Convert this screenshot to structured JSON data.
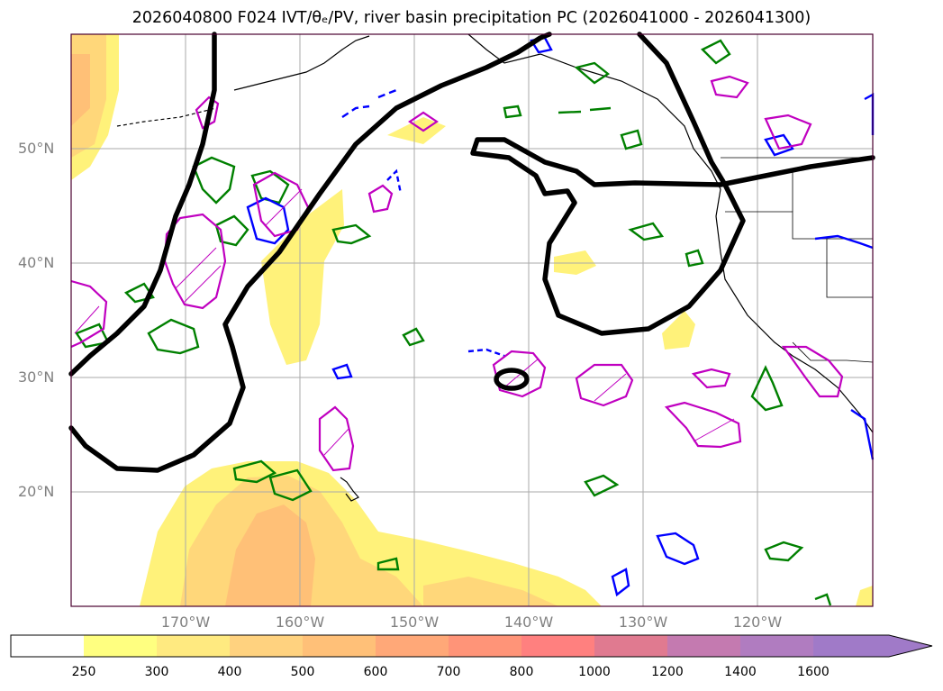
{
  "title": "2026040800 F024 IVT/θₑ/PV, river basin precipitation PC (2026041000 - 2026041300)",
  "axes": {
    "lat_labels": [
      "50°N",
      "40°N",
      "30°N",
      "20°N"
    ],
    "lon_labels": [
      "170°W",
      "160°W",
      "150°W",
      "140°W",
      "130°W",
      "120°W"
    ]
  },
  "colorbar": {
    "labels": [
      "250",
      "300",
      "400",
      "500",
      "600",
      "700",
      "800",
      "1000",
      "1200",
      "1400",
      "1600"
    ],
    "colors": [
      "#ffffff",
      "#ffff80",
      "#ffea80",
      "#ffd27f",
      "#ffc078",
      "#ffa878",
      "#ff9478",
      "#ff807f",
      "#e07a90",
      "#c47ab0",
      "#b07cc0",
      "#a07ac8"
    ]
  },
  "layer_colors": {
    "ivt_fill_low": "#fff27a",
    "ivt_fill_mid": "#ffd77a",
    "ivt_fill_high": "#ffc077",
    "theta_e_contour": "#000000",
    "pv_contour": "#008000",
    "precip_blue_contour": "#0000ff",
    "precip_magenta_contour": "#c000c0",
    "grid": "#aaaaaa",
    "coast": "#000000"
  }
}
